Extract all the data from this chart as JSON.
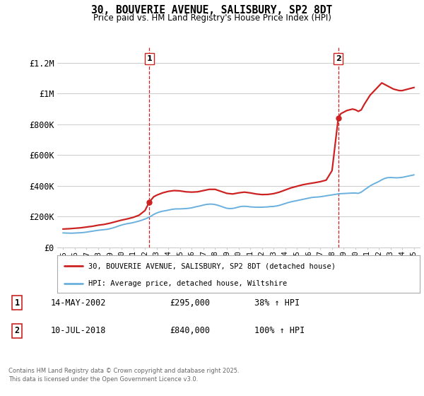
{
  "title": "30, BOUVERIE AVENUE, SALISBURY, SP2 8DT",
  "subtitle": "Price paid vs. HM Land Registry's House Price Index (HPI)",
  "ylabel_ticks": [
    "£0",
    "£200K",
    "£400K",
    "£600K",
    "£800K",
    "£1M",
    "£1.2M"
  ],
  "ytick_values": [
    0,
    200000,
    400000,
    600000,
    800000,
    1000000,
    1200000
  ],
  "ylim": [
    0,
    1300000
  ],
  "xlim_start": 1994.5,
  "xlim_end": 2025.5,
  "purchase1_x": 2002.37,
  "purchase1_y": 295000,
  "purchase1_label": "1",
  "purchase2_x": 2018.53,
  "purchase2_y": 840000,
  "purchase2_label": "2",
  "vline1_x": 2002.37,
  "vline2_x": 2018.53,
  "hpi_color": "#6ab0de",
  "price_color": "#cc2222",
  "vline_color": "#cc2222",
  "bg_color": "#ffffff",
  "grid_color": "#cccccc",
  "legend_label1": "30, BOUVERIE AVENUE, SALISBURY, SP2 8DT (detached house)",
  "legend_label2": "HPI: Average price, detached house, Wiltshire",
  "footnote_line1": "Contains HM Land Registry data © Crown copyright and database right 2025.",
  "footnote_line2": "This data is licensed under the Open Government Licence v3.0.",
  "ann1_date": "14-MAY-2002",
  "ann1_price": "£295,000",
  "ann1_hpi": "38% ↑ HPI",
  "ann2_date": "10-JUL-2018",
  "ann2_price": "£840,000",
  "ann2_hpi": "100% ↑ HPI",
  "hpi_data": [
    [
      1995.0,
      95000
    ],
    [
      1995.25,
      94000
    ],
    [
      1995.5,
      93500
    ],
    [
      1995.75,
      93000
    ],
    [
      1996.0,
      94000
    ],
    [
      1996.25,
      95000
    ],
    [
      1996.5,
      96000
    ],
    [
      1996.75,
      97500
    ],
    [
      1997.0,
      100000
    ],
    [
      1997.25,
      103000
    ],
    [
      1997.5,
      106000
    ],
    [
      1997.75,
      109000
    ],
    [
      1998.0,
      112000
    ],
    [
      1998.25,
      114000
    ],
    [
      1998.5,
      116000
    ],
    [
      1998.75,
      118000
    ],
    [
      1999.0,
      122000
    ],
    [
      1999.25,
      127000
    ],
    [
      1999.5,
      133000
    ],
    [
      1999.75,
      140000
    ],
    [
      2000.0,
      146000
    ],
    [
      2000.25,
      151000
    ],
    [
      2000.5,
      155000
    ],
    [
      2000.75,
      158000
    ],
    [
      2001.0,
      162000
    ],
    [
      2001.25,
      167000
    ],
    [
      2001.5,
      172000
    ],
    [
      2001.75,
      178000
    ],
    [
      2002.0,
      185000
    ],
    [
      2002.25,
      193000
    ],
    [
      2002.5,
      203000
    ],
    [
      2002.75,
      215000
    ],
    [
      2003.0,
      224000
    ],
    [
      2003.25,
      231000
    ],
    [
      2003.5,
      236000
    ],
    [
      2003.75,
      239000
    ],
    [
      2004.0,
      243000
    ],
    [
      2004.25,
      247000
    ],
    [
      2004.5,
      250000
    ],
    [
      2004.75,
      251000
    ],
    [
      2005.0,
      251000
    ],
    [
      2005.25,
      252000
    ],
    [
      2005.5,
      253000
    ],
    [
      2005.75,
      255000
    ],
    [
      2006.0,
      258000
    ],
    [
      2006.25,
      263000
    ],
    [
      2006.5,
      267000
    ],
    [
      2006.75,
      271000
    ],
    [
      2007.0,
      276000
    ],
    [
      2007.25,
      280000
    ],
    [
      2007.5,
      282000
    ],
    [
      2007.75,
      282000
    ],
    [
      2008.0,
      279000
    ],
    [
      2008.25,
      274000
    ],
    [
      2008.5,
      268000
    ],
    [
      2008.75,
      261000
    ],
    [
      2009.0,
      255000
    ],
    [
      2009.25,
      253000
    ],
    [
      2009.5,
      254000
    ],
    [
      2009.75,
      258000
    ],
    [
      2010.0,
      263000
    ],
    [
      2010.25,
      267000
    ],
    [
      2010.5,
      268000
    ],
    [
      2010.75,
      267000
    ],
    [
      2011.0,
      264000
    ],
    [
      2011.25,
      263000
    ],
    [
      2011.5,
      262000
    ],
    [
      2011.75,
      262000
    ],
    [
      2012.0,
      262000
    ],
    [
      2012.25,
      263000
    ],
    [
      2012.5,
      264000
    ],
    [
      2012.75,
      266000
    ],
    [
      2013.0,
      267000
    ],
    [
      2013.25,
      270000
    ],
    [
      2013.5,
      274000
    ],
    [
      2013.75,
      280000
    ],
    [
      2014.0,
      286000
    ],
    [
      2014.25,
      292000
    ],
    [
      2014.5,
      297000
    ],
    [
      2014.75,
      301000
    ],
    [
      2015.0,
      305000
    ],
    [
      2015.25,
      309000
    ],
    [
      2015.5,
      313000
    ],
    [
      2015.75,
      317000
    ],
    [
      2016.0,
      321000
    ],
    [
      2016.25,
      325000
    ],
    [
      2016.5,
      327000
    ],
    [
      2016.75,
      328000
    ],
    [
      2017.0,
      330000
    ],
    [
      2017.25,
      333000
    ],
    [
      2017.5,
      336000
    ],
    [
      2017.75,
      339000
    ],
    [
      2018.0,
      342000
    ],
    [
      2018.25,
      345000
    ],
    [
      2018.5,
      348000
    ],
    [
      2018.75,
      350000
    ],
    [
      2019.0,
      351000
    ],
    [
      2019.25,
      352000
    ],
    [
      2019.5,
      353000
    ],
    [
      2019.75,
      354000
    ],
    [
      2020.0,
      354000
    ],
    [
      2020.25,
      352000
    ],
    [
      2020.5,
      360000
    ],
    [
      2020.75,
      374000
    ],
    [
      2021.0,
      387000
    ],
    [
      2021.25,
      400000
    ],
    [
      2021.5,
      411000
    ],
    [
      2021.75,
      420000
    ],
    [
      2022.0,
      429000
    ],
    [
      2022.25,
      440000
    ],
    [
      2022.5,
      449000
    ],
    [
      2022.75,
      454000
    ],
    [
      2023.0,
      455000
    ],
    [
      2023.25,
      454000
    ],
    [
      2023.5,
      453000
    ],
    [
      2023.75,
      454000
    ],
    [
      2024.0,
      456000
    ],
    [
      2024.25,
      460000
    ],
    [
      2024.5,
      464000
    ],
    [
      2024.75,
      468000
    ],
    [
      2025.0,
      472000
    ]
  ],
  "price_data": [
    [
      1995.0,
      120000
    ],
    [
      1995.5,
      122000
    ],
    [
      1996.0,
      125000
    ],
    [
      1996.5,
      128000
    ],
    [
      1997.0,
      133000
    ],
    [
      1997.5,
      138000
    ],
    [
      1998.0,
      145000
    ],
    [
      1998.5,
      150000
    ],
    [
      1999.0,
      158000
    ],
    [
      1999.5,
      168000
    ],
    [
      2000.0,
      178000
    ],
    [
      2000.5,
      186000
    ],
    [
      2001.0,
      196000
    ],
    [
      2001.5,
      210000
    ],
    [
      2002.0,
      240000
    ],
    [
      2002.37,
      295000
    ],
    [
      2002.75,
      330000
    ],
    [
      2003.0,
      340000
    ],
    [
      2003.5,
      355000
    ],
    [
      2004.0,
      365000
    ],
    [
      2004.5,
      370000
    ],
    [
      2005.0,
      368000
    ],
    [
      2005.5,
      362000
    ],
    [
      2006.0,
      360000
    ],
    [
      2006.5,
      362000
    ],
    [
      2007.0,
      370000
    ],
    [
      2007.5,
      378000
    ],
    [
      2008.0,
      378000
    ],
    [
      2008.5,
      365000
    ],
    [
      2009.0,
      352000
    ],
    [
      2009.5,
      348000
    ],
    [
      2010.0,
      355000
    ],
    [
      2010.5,
      360000
    ],
    [
      2011.0,
      355000
    ],
    [
      2011.5,
      348000
    ],
    [
      2012.0,
      344000
    ],
    [
      2012.5,
      345000
    ],
    [
      2013.0,
      350000
    ],
    [
      2013.5,
      360000
    ],
    [
      2014.0,
      374000
    ],
    [
      2014.5,
      388000
    ],
    [
      2015.0,
      398000
    ],
    [
      2015.5,
      408000
    ],
    [
      2016.0,
      415000
    ],
    [
      2016.5,
      421000
    ],
    [
      2017.0,
      428000
    ],
    [
      2017.5,
      438000
    ],
    [
      2018.0,
      500000
    ],
    [
      2018.53,
      840000
    ],
    [
      2018.75,
      870000
    ],
    [
      2019.0,
      880000
    ],
    [
      2019.25,
      890000
    ],
    [
      2019.5,
      895000
    ],
    [
      2019.75,
      900000
    ],
    [
      2020.0,
      895000
    ],
    [
      2020.25,
      885000
    ],
    [
      2020.5,
      895000
    ],
    [
      2020.75,
      930000
    ],
    [
      2021.0,
      960000
    ],
    [
      2021.25,
      990000
    ],
    [
      2021.5,
      1010000
    ],
    [
      2021.75,
      1030000
    ],
    [
      2022.0,
      1050000
    ],
    [
      2022.25,
      1070000
    ],
    [
      2022.5,
      1060000
    ],
    [
      2022.75,
      1050000
    ],
    [
      2023.0,
      1040000
    ],
    [
      2023.25,
      1030000
    ],
    [
      2023.5,
      1025000
    ],
    [
      2023.75,
      1020000
    ],
    [
      2024.0,
      1020000
    ],
    [
      2024.25,
      1025000
    ],
    [
      2024.5,
      1030000
    ],
    [
      2024.75,
      1035000
    ],
    [
      2025.0,
      1040000
    ]
  ]
}
